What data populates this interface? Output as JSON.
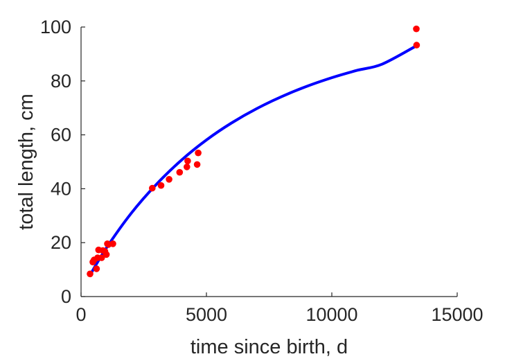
{
  "chart_data": {
    "type": "scatter",
    "title": "",
    "xlabel": "time since birth, d",
    "ylabel": "total length, cm",
    "xlim": [
      0,
      15000
    ],
    "ylim": [
      0,
      100
    ],
    "xticks": [
      0,
      5000,
      10000,
      15000
    ],
    "yticks": [
      0,
      20,
      40,
      60,
      80,
      100
    ],
    "grid": false,
    "legend": "none",
    "series": [
      {
        "kind": "points",
        "color": "#ff0000",
        "x": [
          360,
          470,
          520,
          620,
          660,
          700,
          820,
          870,
          950,
          1010,
          1050,
          1090,
          1270,
          2840,
          3190,
          3510,
          3930,
          4220,
          4250,
          4630,
          4670,
          13370,
          13380
        ],
        "y": [
          8.4,
          12.8,
          13.6,
          10.3,
          14.4,
          17.3,
          14.4,
          17.1,
          16.8,
          15.6,
          19.6,
          19.3,
          19.6,
          40.2,
          41.2,
          43.5,
          46.1,
          48.1,
          50.3,
          49.0,
          53.3,
          99.3,
          93.3
        ]
      },
      {
        "kind": "line",
        "color": "#0000ff",
        "x": [
          360,
          1000,
          2000,
          3000,
          4000,
          5000,
          6000,
          7000,
          8000,
          9000,
          10000,
          11000,
          12000,
          13370
        ],
        "y": [
          8.0,
          17.9,
          30.9,
          41.6,
          50.6,
          58.1,
          64.4,
          69.7,
          74.2,
          78.0,
          81.2,
          83.9,
          86.2,
          93.0
        ]
      }
    ]
  }
}
